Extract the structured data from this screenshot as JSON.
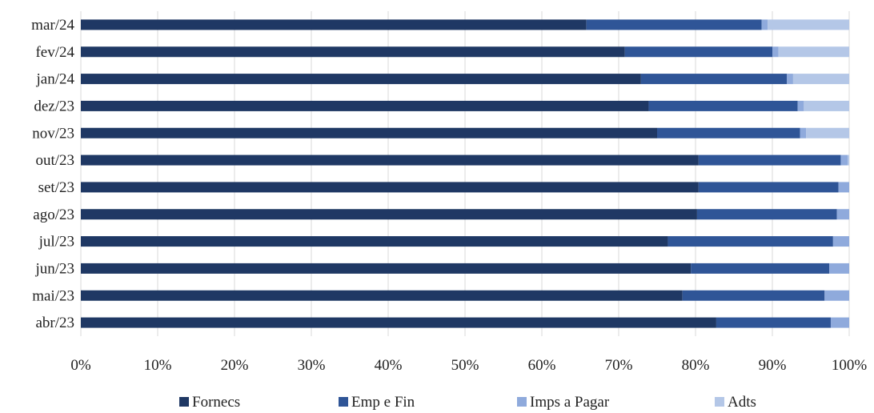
{
  "chart_data": {
    "type": "bar",
    "orientation": "horizontal",
    "stacked": "percent",
    "categories": [
      "mar/24",
      "fev/24",
      "jan/24",
      "dez/23",
      "nov/23",
      "out/23",
      "set/23",
      "ago/23",
      "jul/23",
      "jun/23",
      "mai/23",
      "abr/23"
    ],
    "series": [
      {
        "name": "Fornecs",
        "color": "#1f3864",
        "values": [
          65.8,
          70.8,
          72.9,
          73.9,
          75.0,
          80.4,
          80.4,
          80.2,
          76.4,
          79.4,
          78.3,
          82.7
        ]
      },
      {
        "name": "Emp e Fin",
        "color": "#2f5597",
        "values": [
          22.8,
          19.2,
          19.0,
          19.4,
          18.6,
          18.5,
          18.2,
          18.2,
          21.5,
          18.0,
          18.5,
          14.9
        ]
      },
      {
        "name": "Imps a Pagar",
        "color": "#8faadc",
        "values": [
          0.8,
          0.8,
          0.8,
          0.8,
          0.8,
          0.9,
          1.4,
          1.6,
          2.1,
          2.6,
          3.2,
          2.4
        ]
      },
      {
        "name": "Adts",
        "color": "#b4c7e7",
        "values": [
          10.6,
          9.2,
          7.3,
          5.9,
          5.6,
          0.2,
          0.0,
          0.0,
          0.0,
          0.0,
          0.0,
          0.0
        ]
      }
    ],
    "xaxis": {
      "ticks": [
        0,
        10,
        20,
        30,
        40,
        50,
        60,
        70,
        80,
        90,
        100
      ],
      "tick_labels": [
        "0%",
        "10%",
        "20%",
        "30%",
        "40%",
        "50%",
        "60%",
        "70%",
        "80%",
        "90%",
        "100%"
      ],
      "range": [
        0,
        100
      ]
    },
    "grid": true,
    "legend": "bottom",
    "title": "",
    "xlabel": "",
    "ylabel": ""
  }
}
